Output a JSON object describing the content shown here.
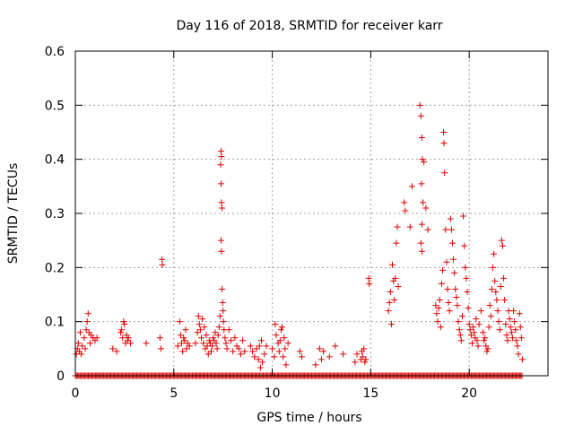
{
  "chart_data": {
    "type": "scatter",
    "title": "Day 116 of 2018, SRMTID for receiver karr",
    "xlabel": "GPS time / hours",
    "ylabel": "SRMTID / TECUs",
    "xlim": [
      0,
      24
    ],
    "ylim": [
      0,
      0.6
    ],
    "x_ticks": [
      0,
      5,
      10,
      15,
      20
    ],
    "x_tick_labels": [
      "0",
      "5",
      "10",
      "15",
      "20"
    ],
    "y_ticks": [
      0,
      0.1,
      0.2,
      0.3,
      0.4,
      0.5,
      0.6
    ],
    "y_tick_labels": [
      "0",
      "0.1",
      "0.2",
      "0.3",
      "0.4",
      "0.5",
      "0.6"
    ],
    "grid": true,
    "marker": "plus",
    "series_color": "#e00000",
    "baseline": {
      "y": 0,
      "x_start": 0,
      "x_end": 22.7,
      "step": 0.06
    },
    "series": [
      {
        "name": "SRMTID",
        "points": [
          [
            0.05,
            0.04
          ],
          [
            0.1,
            0.05
          ],
          [
            0.15,
            0.06
          ],
          [
            0.2,
            0.045
          ],
          [
            0.25,
            0.08
          ],
          [
            0.3,
            0.04
          ],
          [
            0.35,
            0.055
          ],
          [
            0.45,
            0.07
          ],
          [
            0.5,
            0.05
          ],
          [
            0.55,
            0.085
          ],
          [
            0.6,
            0.1
          ],
          [
            0.65,
            0.115
          ],
          [
            0.7,
            0.08
          ],
          [
            0.75,
            0.06
          ],
          [
            0.8,
            0.075
          ],
          [
            0.9,
            0.07
          ],
          [
            1.0,
            0.065
          ],
          [
            1.1,
            0.07
          ],
          [
            1.9,
            0.05
          ],
          [
            2.1,
            0.045
          ],
          [
            2.3,
            0.08
          ],
          [
            2.35,
            0.085
          ],
          [
            2.4,
            0.07
          ],
          [
            2.45,
            0.1
          ],
          [
            2.5,
            0.095
          ],
          [
            2.55,
            0.06
          ],
          [
            2.6,
            0.075
          ],
          [
            2.65,
            0.065
          ],
          [
            2.7,
            0.07
          ],
          [
            2.8,
            0.06
          ],
          [
            3.6,
            0.06
          ],
          [
            4.3,
            0.07
          ],
          [
            4.35,
            0.05
          ],
          [
            4.4,
            0.215
          ],
          [
            4.42,
            0.205
          ],
          [
            5.2,
            0.055
          ],
          [
            5.3,
            0.1
          ],
          [
            5.35,
            0.075
          ],
          [
            5.4,
            0.06
          ],
          [
            5.45,
            0.045
          ],
          [
            5.5,
            0.07
          ],
          [
            5.55,
            0.065
          ],
          [
            5.6,
            0.085
          ],
          [
            5.65,
            0.05
          ],
          [
            5.7,
            0.06
          ],
          [
            5.8,
            0.055
          ],
          [
            6.1,
            0.06
          ],
          [
            6.2,
            0.08
          ],
          [
            6.25,
            0.11
          ],
          [
            6.3,
            0.095
          ],
          [
            6.35,
            0.085
          ],
          [
            6.4,
            0.07
          ],
          [
            6.45,
            0.105
          ],
          [
            6.5,
            0.06
          ],
          [
            6.55,
            0.09
          ],
          [
            6.6,
            0.05
          ],
          [
            6.65,
            0.075
          ],
          [
            6.7,
            0.055
          ],
          [
            6.75,
            0.04
          ],
          [
            6.8,
            0.065
          ],
          [
            6.85,
            0.06
          ],
          [
            6.9,
            0.045
          ],
          [
            6.95,
            0.055
          ],
          [
            7.0,
            0.07
          ],
          [
            7.05,
            0.065
          ],
          [
            7.1,
            0.08
          ],
          [
            7.15,
            0.06
          ],
          [
            7.2,
            0.05
          ],
          [
            7.25,
            0.075
          ],
          [
            7.3,
            0.09
          ],
          [
            7.35,
            0.11
          ],
          [
            7.4,
            0.415
          ],
          [
            7.42,
            0.405
          ],
          [
            7.38,
            0.39
          ],
          [
            7.4,
            0.355
          ],
          [
            7.42,
            0.32
          ],
          [
            7.45,
            0.31
          ],
          [
            7.4,
            0.25
          ],
          [
            7.42,
            0.23
          ],
          [
            7.45,
            0.16
          ],
          [
            7.48,
            0.135
          ],
          [
            7.5,
            0.12
          ],
          [
            7.52,
            0.1
          ],
          [
            7.55,
            0.085
          ],
          [
            7.6,
            0.07
          ],
          [
            7.65,
            0.06
          ],
          [
            7.7,
            0.05
          ],
          [
            7.8,
            0.085
          ],
          [
            7.9,
            0.065
          ],
          [
            8.0,
            0.045
          ],
          [
            8.1,
            0.07
          ],
          [
            8.2,
            0.055
          ],
          [
            8.3,
            0.05
          ],
          [
            8.4,
            0.04
          ],
          [
            8.5,
            0.065
          ],
          [
            8.6,
            0.045
          ],
          [
            8.9,
            0.055
          ],
          [
            9.0,
            0.045
          ],
          [
            9.1,
            0.035
          ],
          [
            9.2,
            0.05
          ],
          [
            9.3,
            0.03
          ],
          [
            9.35,
            0.055
          ],
          [
            9.4,
            0.015
          ],
          [
            9.45,
            0.065
          ],
          [
            9.5,
            0.025
          ],
          [
            9.6,
            0.04
          ],
          [
            9.7,
            0.055
          ],
          [
            10.0,
            0.05
          ],
          [
            10.1,
            0.035
          ],
          [
            10.15,
            0.095
          ],
          [
            10.2,
            0.075
          ],
          [
            10.3,
            0.06
          ],
          [
            10.35,
            0.045
          ],
          [
            10.4,
            0.065
          ],
          [
            10.45,
            0.085
          ],
          [
            10.5,
            0.09
          ],
          [
            10.55,
            0.035
          ],
          [
            10.6,
            0.07
          ],
          [
            10.65,
            0.05
          ],
          [
            10.7,
            0.02
          ],
          [
            10.8,
            0.06
          ],
          [
            11.4,
            0.045
          ],
          [
            11.5,
            0.035
          ],
          [
            12.2,
            0.02
          ],
          [
            12.4,
            0.05
          ],
          [
            12.5,
            0.03
          ],
          [
            12.6,
            0.045
          ],
          [
            12.9,
            0.035
          ],
          [
            13.2,
            0.055
          ],
          [
            13.6,
            0.04
          ],
          [
            14.2,
            0.025
          ],
          [
            14.3,
            0.04
          ],
          [
            14.5,
            0.03
          ],
          [
            14.55,
            0.045
          ],
          [
            14.6,
            0.035
          ],
          [
            14.65,
            0.05
          ],
          [
            14.7,
            0.025
          ],
          [
            14.75,
            0.03
          ],
          [
            14.9,
            0.18
          ],
          [
            14.92,
            0.17
          ],
          [
            15.9,
            0.12
          ],
          [
            15.95,
            0.135
          ],
          [
            16.0,
            0.155
          ],
          [
            16.05,
            0.095
          ],
          [
            16.1,
            0.205
          ],
          [
            16.15,
            0.175
          ],
          [
            16.2,
            0.14
          ],
          [
            16.25,
            0.18
          ],
          [
            16.3,
            0.245
          ],
          [
            16.35,
            0.275
          ],
          [
            16.4,
            0.165
          ],
          [
            16.7,
            0.32
          ],
          [
            16.75,
            0.305
          ],
          [
            17.0,
            0.275
          ],
          [
            17.1,
            0.35
          ],
          [
            17.5,
            0.5
          ],
          [
            17.55,
            0.48
          ],
          [
            17.6,
            0.44
          ],
          [
            17.62,
            0.4
          ],
          [
            17.58,
            0.355
          ],
          [
            17.65,
            0.32
          ],
          [
            17.6,
            0.28
          ],
          [
            17.55,
            0.245
          ],
          [
            17.6,
            0.23
          ],
          [
            17.7,
            0.395
          ],
          [
            17.8,
            0.31
          ],
          [
            17.9,
            0.27
          ],
          [
            18.3,
            0.13
          ],
          [
            18.35,
            0.115
          ],
          [
            18.4,
            0.1
          ],
          [
            18.45,
            0.125
          ],
          [
            18.5,
            0.14
          ],
          [
            18.55,
            0.09
          ],
          [
            18.6,
            0.17
          ],
          [
            18.65,
            0.195
          ],
          [
            18.7,
            0.45
          ],
          [
            18.72,
            0.43
          ],
          [
            18.75,
            0.375
          ],
          [
            18.8,
            0.27
          ],
          [
            18.85,
            0.21
          ],
          [
            18.9,
            0.16
          ],
          [
            18.95,
            0.135
          ],
          [
            19.0,
            0.12
          ],
          [
            19.05,
            0.29
          ],
          [
            19.1,
            0.27
          ],
          [
            19.15,
            0.245
          ],
          [
            19.2,
            0.215
          ],
          [
            19.25,
            0.19
          ],
          [
            19.3,
            0.16
          ],
          [
            19.35,
            0.145
          ],
          [
            19.4,
            0.13
          ],
          [
            19.45,
            0.1
          ],
          [
            19.5,
            0.085
          ],
          [
            19.55,
            0.075
          ],
          [
            19.6,
            0.065
          ],
          [
            19.65,
            0.11
          ],
          [
            19.7,
            0.295
          ],
          [
            19.75,
            0.24
          ],
          [
            19.8,
            0.2
          ],
          [
            19.85,
            0.18
          ],
          [
            19.9,
            0.155
          ],
          [
            19.95,
            0.125
          ],
          [
            20.0,
            0.095
          ],
          [
            20.05,
            0.085
          ],
          [
            20.1,
            0.075
          ],
          [
            20.15,
            0.06
          ],
          [
            20.2,
            0.09
          ],
          [
            20.25,
            0.08
          ],
          [
            20.3,
            0.07
          ],
          [
            20.35,
            0.105
          ],
          [
            20.4,
            0.065
          ],
          [
            20.45,
            0.055
          ],
          [
            20.5,
            0.095
          ],
          [
            20.6,
            0.12
          ],
          [
            20.7,
            0.08
          ],
          [
            20.75,
            0.065
          ],
          [
            20.8,
            0.07
          ],
          [
            20.85,
            0.055
          ],
          [
            20.9,
            0.045
          ],
          [
            20.95,
            0.05
          ],
          [
            21.0,
            0.09
          ],
          [
            21.05,
            0.13
          ],
          [
            21.1,
            0.11
          ],
          [
            21.15,
            0.16
          ],
          [
            21.2,
            0.2
          ],
          [
            21.25,
            0.225
          ],
          [
            21.3,
            0.175
          ],
          [
            21.35,
            0.155
          ],
          [
            21.4,
            0.14
          ],
          [
            21.45,
            0.12
          ],
          [
            21.5,
            0.1
          ],
          [
            21.55,
            0.085
          ],
          [
            21.6,
            0.165
          ],
          [
            21.65,
            0.25
          ],
          [
            21.7,
            0.24
          ],
          [
            21.75,
            0.18
          ],
          [
            21.8,
            0.14
          ],
          [
            21.85,
            0.095
          ],
          [
            21.9,
            0.075
          ],
          [
            21.95,
            0.065
          ],
          [
            22.0,
            0.12
          ],
          [
            22.05,
            0.105
          ],
          [
            22.1,
            0.09
          ],
          [
            22.15,
            0.08
          ],
          [
            22.2,
            0.07
          ],
          [
            22.25,
            0.12
          ],
          [
            22.3,
            0.1
          ],
          [
            22.35,
            0.085
          ],
          [
            22.4,
            0.065
          ],
          [
            22.45,
            0.055
          ],
          [
            22.5,
            0.04
          ],
          [
            22.55,
            0.115
          ],
          [
            22.6,
            0.09
          ],
          [
            22.65,
            0.07
          ],
          [
            22.7,
            0.03
          ]
        ]
      }
    ]
  }
}
